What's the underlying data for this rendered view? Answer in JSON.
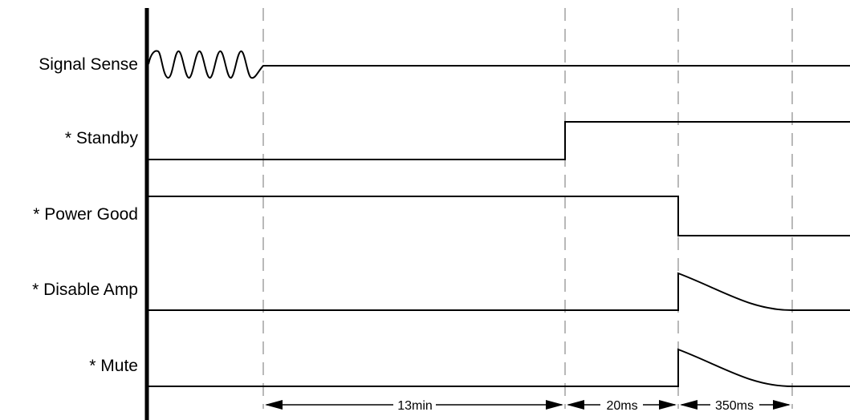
{
  "signals": [
    {
      "label": "Signal Sense"
    },
    {
      "label": "* Standby"
    },
    {
      "label": "* Power Good"
    },
    {
      "label": "* Disable Amp"
    },
    {
      "label": "* Mute"
    }
  ],
  "intervals": [
    {
      "label": "13min"
    },
    {
      "label": "20ms"
    },
    {
      "label": "350ms"
    }
  ]
}
